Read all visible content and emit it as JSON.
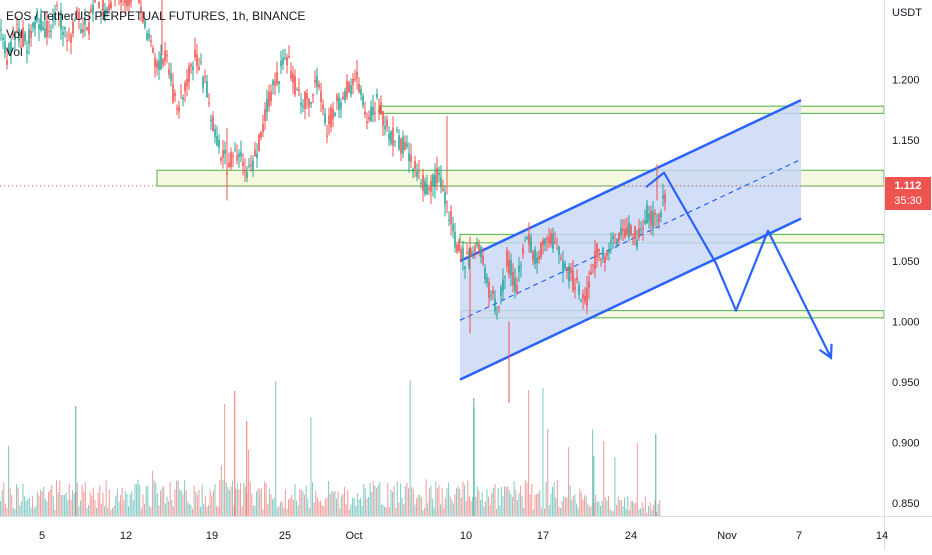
{
  "header": {
    "symbol": "EOS / TetherUS PERPETUAL FUTURES, 1h, BINANCE",
    "indicator_1": "Vol",
    "indicator_2": "Vol",
    "currency": "USDT"
  },
  "last_price": {
    "value": "1.112",
    "countdown": "35:30"
  },
  "colors": {
    "up": "#26a69a",
    "down": "#ef5350",
    "drawing": "#2962ff",
    "channel_fill": "#c8d6f8",
    "zone_fill": "#f4f9e0",
    "zone_border": "#4caf50",
    "axis": "#d9dde6"
  },
  "chart_data": {
    "type": "candlestick",
    "y_axis": {
      "position": "right",
      "range": [
        0.84,
        1.27
      ],
      "ticks": [
        "1.200",
        "1.150",
        "1.100",
        "1.050",
        "1.000",
        "0.950",
        "0.900",
        "0.850"
      ]
    },
    "x_axis": {
      "ticks": [
        "5",
        "12",
        "19",
        "25",
        "Oct",
        "10",
        "17",
        "24",
        "Nov",
        "7",
        "14"
      ]
    },
    "price_path": [
      [
        1,
        1.26
      ],
      [
        2,
        1.25
      ],
      [
        3,
        1.24
      ],
      [
        4,
        1.245
      ],
      [
        5,
        1.22
      ],
      [
        6,
        1.24
      ],
      [
        7,
        1.23
      ],
      [
        8,
        1.25
      ],
      [
        9,
        1.24
      ],
      [
        10,
        1.26
      ],
      [
        11,
        1.23
      ],
      [
        12,
        1.25
      ],
      [
        13,
        1.24
      ],
      [
        14,
        1.27
      ],
      [
        15,
        1.25
      ],
      [
        16,
        1.28
      ],
      [
        17,
        1.26
      ],
      [
        18,
        1.28
      ],
      [
        19,
        1.24
      ],
      [
        20,
        1.21
      ],
      [
        21,
        1.22
      ],
      [
        22,
        1.17
      ],
      [
        23,
        1.2
      ],
      [
        24,
        1.22
      ],
      [
        25,
        1.19
      ],
      [
        26,
        1.15
      ],
      [
        27,
        1.13
      ],
      [
        28,
        1.14
      ],
      [
        29,
        1.12
      ],
      [
        30,
        1.14
      ],
      [
        31,
        1.18
      ],
      [
        32,
        1.2
      ],
      [
        33,
        1.22
      ],
      [
        34,
        1.19
      ],
      [
        35,
        1.18
      ],
      [
        36,
        1.2
      ],
      [
        37,
        1.16
      ],
      [
        38,
        1.18
      ],
      [
        39,
        1.19
      ],
      [
        40,
        1.2
      ],
      [
        41,
        1.17
      ],
      [
        42,
        1.18
      ],
      [
        43,
        1.16
      ],
      [
        44,
        1.15
      ],
      [
        45,
        1.14
      ],
      [
        46,
        1.12
      ],
      [
        47,
        1.11
      ],
      [
        48,
        1.12
      ],
      [
        49,
        1.1
      ],
      [
        50,
        1.06
      ],
      [
        51,
        1.05
      ],
      [
        52,
        1.07
      ],
      [
        53,
        1.03
      ],
      [
        54,
        1.01
      ],
      [
        55,
        1.05
      ],
      [
        56,
        1.03
      ],
      [
        57,
        1.07
      ],
      [
        58,
        1.05
      ],
      [
        59,
        1.07
      ],
      [
        60,
        1.06
      ],
      [
        61,
        1.04
      ],
      [
        62,
        1.03
      ],
      [
        63,
        1.02
      ],
      [
        64,
        1.06
      ],
      [
        65,
        1.05
      ],
      [
        66,
        1.07
      ],
      [
        67,
        1.08
      ],
      [
        68,
        1.07
      ],
      [
        69,
        1.09
      ],
      [
        70,
        1.08
      ],
      [
        71,
        1.11
      ]
    ],
    "zones": [
      {
        "y_low": 1.172,
        "y_high": 1.178,
        "x_start": 42.3
      },
      {
        "y_low": 1.112,
        "y_high": 1.125,
        "x_start": 20.0
      },
      {
        "y_low": 1.065,
        "y_high": 1.072,
        "x_start": 50.3
      },
      {
        "y_low": 1.003,
        "y_high": 1.009,
        "x_start": 50.4
      }
    ],
    "channel": {
      "upper": {
        "x1": 50.3,
        "y1": 1.05,
        "x2": 84.4,
        "y2": 1.183
      },
      "lower": {
        "x1": 50.3,
        "y1": 0.952,
        "x2": 84.4,
        "y2": 1.085
      },
      "mid": {
        "x1": 50.3,
        "y1": 1.001,
        "x2": 84.4,
        "y2": 1.134
      }
    },
    "projection": [
      [
        68.9,
        1.111
      ],
      [
        70.7,
        1.123
      ],
      [
        75.9,
        1.048
      ],
      [
        77.9,
        1.009
      ],
      [
        81.1,
        1.075
      ],
      [
        87.4,
        0.97
      ]
    ]
  }
}
